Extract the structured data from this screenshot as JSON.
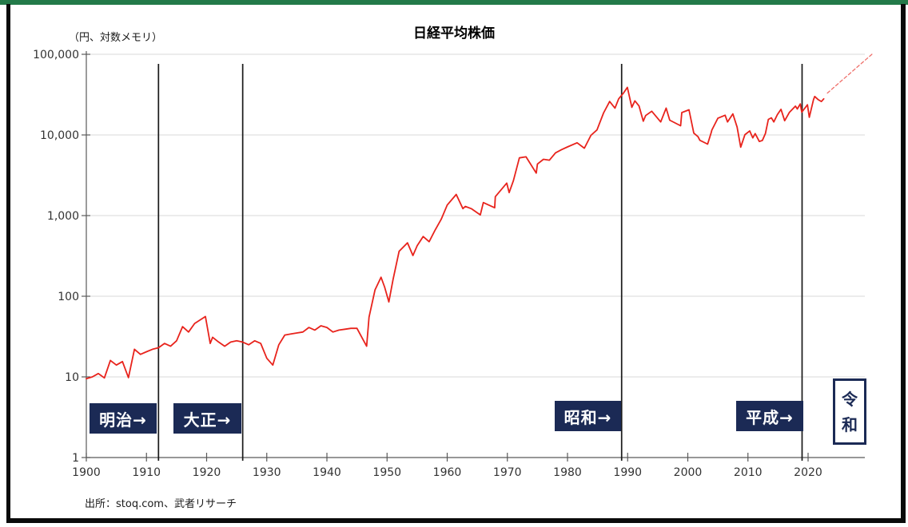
{
  "header": {
    "title": "日経平均株価",
    "unit_label": "（円、対数メモリ）"
  },
  "footer": {
    "source": "出所：stoq.com、武者リサーチ"
  },
  "eras": [
    {
      "name": "meiji",
      "label": "明治→"
    },
    {
      "name": "taisho",
      "label": "大正→"
    },
    {
      "name": "showa",
      "label": "昭和→"
    },
    {
      "name": "heisei",
      "label": "平成→"
    },
    {
      "name": "reiwa",
      "label": "令和"
    }
  ],
  "chart_data": {
    "type": "line",
    "title": "日経平均株価",
    "ylabel": "（円、対数メモリ）",
    "y_scale": "log",
    "ylim": [
      1,
      100000
    ],
    "xlim": [
      1900,
      2030
    ],
    "grid": "horizontal-only",
    "legend": "none",
    "y_ticks": {
      "values": [
        100000,
        10000,
        1000,
        100,
        10,
        1
      ],
      "labels": [
        "100,000",
        "10,000",
        "1,000",
        "100",
        "10",
        "1"
      ]
    },
    "x_ticks": [
      "1900",
      "1910",
      "1920",
      "1930",
      "1940",
      "1950",
      "1960",
      "1970",
      "1980",
      "1990",
      "2000",
      "2010",
      "2020"
    ],
    "era_boundary_years": [
      1912,
      1926,
      1989,
      2019
    ],
    "colors": {
      "line": "#e8231c",
      "projection": "#ef6f6a",
      "grid": "#d9d9d9",
      "axis": "#595959",
      "tick_label": "#333333",
      "era_line": "#1a1a1a",
      "navy": "#1b2a55",
      "border_green": "#237a49"
    },
    "series": [
      {
        "name": "nikkei",
        "style": "solid",
        "color": "#e8231c",
        "points": [
          [
            1900,
            9.5
          ],
          [
            1901,
            10
          ],
          [
            1902,
            11
          ],
          [
            1903,
            9.7
          ],
          [
            1904,
            16
          ],
          [
            1905,
            14
          ],
          [
            1906,
            15.5
          ],
          [
            1907,
            9.8
          ],
          [
            1908,
            22
          ],
          [
            1909,
            19
          ],
          [
            1910,
            20.5
          ],
          [
            1911,
            22
          ],
          [
            1912,
            23
          ],
          [
            1913,
            26
          ],
          [
            1914,
            24
          ],
          [
            1915,
            28
          ],
          [
            1916,
            42
          ],
          [
            1917,
            36
          ],
          [
            1918,
            46
          ],
          [
            1919.8,
            56
          ],
          [
            1920.6,
            26
          ],
          [
            1921,
            31
          ],
          [
            1922,
            27
          ],
          [
            1923,
            24
          ],
          [
            1924,
            27
          ],
          [
            1925,
            28
          ],
          [
            1926,
            27
          ],
          [
            1927,
            25
          ],
          [
            1928,
            28
          ],
          [
            1929,
            26
          ],
          [
            1930,
            17
          ],
          [
            1931,
            14
          ],
          [
            1932,
            25
          ],
          [
            1933,
            33
          ],
          [
            1934,
            34
          ],
          [
            1935,
            35
          ],
          [
            1936,
            36
          ],
          [
            1937,
            41
          ],
          [
            1938,
            38
          ],
          [
            1939,
            43
          ],
          [
            1940,
            41
          ],
          [
            1941,
            36
          ],
          [
            1942,
            38
          ],
          [
            1943,
            39
          ],
          [
            1944,
            40
          ],
          [
            1945,
            40
          ],
          [
            1946,
            29
          ],
          [
            1946.6,
            24
          ],
          [
            1947,
            55
          ],
          [
            1948,
            120
          ],
          [
            1949,
            172
          ],
          [
            1949.6,
            130
          ],
          [
            1950.3,
            85
          ],
          [
            1951,
            162
          ],
          [
            1952,
            360
          ],
          [
            1953.4,
            460
          ],
          [
            1954.3,
            320
          ],
          [
            1955,
            422
          ],
          [
            1956,
            550
          ],
          [
            1957,
            475
          ],
          [
            1958,
            665
          ],
          [
            1959,
            900
          ],
          [
            1960,
            1350
          ],
          [
            1961.5,
            1830
          ],
          [
            1962.6,
            1220
          ],
          [
            1963,
            1300
          ],
          [
            1964,
            1220
          ],
          [
            1965.5,
            1020
          ],
          [
            1966,
            1450
          ],
          [
            1967.9,
            1250
          ],
          [
            1968,
            1715
          ],
          [
            1969.9,
            2530
          ],
          [
            1970.3,
            1930
          ],
          [
            1971,
            2710
          ],
          [
            1972,
            5200
          ],
          [
            1973.1,
            5350
          ],
          [
            1974.8,
            3360
          ],
          [
            1975,
            4360
          ],
          [
            1976,
            4990
          ],
          [
            1977,
            4870
          ],
          [
            1978,
            6000
          ],
          [
            1979,
            6570
          ],
          [
            1980,
            7110
          ],
          [
            1981.6,
            8000
          ],
          [
            1982.8,
            6850
          ],
          [
            1983.9,
            9890
          ],
          [
            1984.9,
            11540
          ],
          [
            1986,
            18700
          ],
          [
            1987,
            26000
          ],
          [
            1987.9,
            21500
          ],
          [
            1988.5,
            28000
          ],
          [
            1989.3,
            33000
          ],
          [
            1989.95,
            38900
          ],
          [
            1990.3,
            29800
          ],
          [
            1990.7,
            22000
          ],
          [
            1991.2,
            26500
          ],
          [
            1991.9,
            22900
          ],
          [
            1992.6,
            14800
          ],
          [
            1993,
            17400
          ],
          [
            1994,
            19700
          ],
          [
            1995.5,
            14500
          ],
          [
            1996.4,
            21500
          ],
          [
            1997,
            15260
          ],
          [
            1998.8,
            13000
          ],
          [
            1999,
            18930
          ],
          [
            2000.2,
            20500
          ],
          [
            2001,
            10540
          ],
          [
            2001.7,
            9500
          ],
          [
            2002,
            8580
          ],
          [
            2003.3,
            7700
          ],
          [
            2003.9,
            10700
          ],
          [
            2004,
            11490
          ],
          [
            2005,
            16110
          ],
          [
            2006.2,
            17560
          ],
          [
            2006.6,
            14500
          ],
          [
            2007.5,
            18260
          ],
          [
            2008.2,
            12500
          ],
          [
            2008.8,
            7050
          ],
          [
            2009.5,
            10100
          ],
          [
            2010.3,
            11200
          ],
          [
            2010.8,
            9200
          ],
          [
            2011.2,
            10400
          ],
          [
            2011.9,
            8300
          ],
          [
            2012.4,
            8540
          ],
          [
            2012.9,
            10400
          ],
          [
            2013.4,
            15600
          ],
          [
            2013.9,
            16290
          ],
          [
            2014.3,
            14500
          ],
          [
            2014.9,
            17900
          ],
          [
            2015.5,
            20800
          ],
          [
            2016.1,
            15000
          ],
          [
            2016.9,
            19100
          ],
          [
            2017.9,
            22760
          ],
          [
            2018.2,
            21000
          ],
          [
            2018.7,
            24200
          ],
          [
            2018.95,
            19150
          ],
          [
            2019.9,
            23650
          ],
          [
            2020.2,
            16550
          ],
          [
            2020.9,
            27440
          ],
          [
            2021.1,
            30000
          ],
          [
            2021.7,
            27300
          ],
          [
            2022.2,
            26000
          ],
          [
            2022.6,
            28000
          ]
        ]
      },
      {
        "name": "projection",
        "style": "dashed",
        "color": "#ef6f6a",
        "points": [
          [
            2023.2,
            33000
          ],
          [
            2030.8,
            103000
          ]
        ]
      }
    ]
  }
}
